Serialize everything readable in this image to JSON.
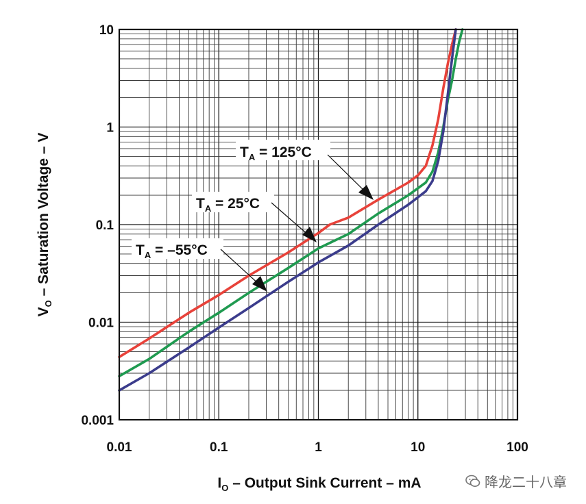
{
  "chart_data": {
    "type": "line",
    "x_scale": "log",
    "y_scale": "log",
    "xlim": [
      0.01,
      100
    ],
    "ylim": [
      0.001,
      10
    ],
    "x_ticks": [
      "0.01",
      "0.1",
      "1",
      "10",
      "100"
    ],
    "y_ticks": [
      "0.001",
      "0.01",
      "0.1",
      "1",
      "10"
    ],
    "xlabel": {
      "main": "I",
      "sub": "O",
      "rest": " – Output Sink Current – mA"
    },
    "ylabel": {
      "main": "V",
      "sub": "O",
      "rest": " – Saturation Voltage – V"
    },
    "grid": true,
    "series": [
      {
        "name": "TA = 125°C",
        "color": "#e8423a",
        "x": [
          0.01,
          0.02,
          0.05,
          0.1,
          0.2,
          0.5,
          1,
          1.3,
          2,
          4,
          8,
          10,
          12,
          14,
          16,
          18,
          20,
          22,
          24
        ],
        "y": [
          0.0044,
          0.0068,
          0.0125,
          0.019,
          0.03,
          0.052,
          0.082,
          0.1,
          0.118,
          0.18,
          0.27,
          0.32,
          0.4,
          0.65,
          1.2,
          2.5,
          4.5,
          7,
          10
        ]
      },
      {
        "name": "TA = 25°C",
        "color": "#1f9a50",
        "x": [
          0.01,
          0.02,
          0.05,
          0.1,
          0.2,
          0.5,
          1,
          2,
          4,
          8,
          12,
          14,
          16,
          18,
          20,
          22,
          24,
          26,
          28
        ],
        "y": [
          0.0028,
          0.0042,
          0.008,
          0.0125,
          0.02,
          0.036,
          0.057,
          0.08,
          0.13,
          0.2,
          0.27,
          0.35,
          0.55,
          1.0,
          1.9,
          3.0,
          5.0,
          7.5,
          10
        ]
      },
      {
        "name": "TA = −55°C",
        "color": "#3b3c8c",
        "x": [
          0.01,
          0.02,
          0.05,
          0.1,
          0.2,
          0.5,
          1,
          2,
          4,
          8,
          12,
          14,
          16,
          18,
          20,
          22,
          24
        ],
        "y": [
          0.002,
          0.003,
          0.0055,
          0.0088,
          0.014,
          0.026,
          0.041,
          0.061,
          0.1,
          0.16,
          0.22,
          0.28,
          0.45,
          0.9,
          2.2,
          5.0,
          10
        ]
      }
    ],
    "annotations": [
      {
        "main": "T",
        "sub": "A",
        "rest": " = 125°C",
        "series": 0,
        "point": [
          4.5,
          0.2
        ]
      },
      {
        "main": "T",
        "sub": "A",
        "rest": " = 25°C",
        "series": 1,
        "point": [
          0.9,
          0.085
        ]
      },
      {
        "main": "T",
        "sub": "A",
        "rest": " = –55°C",
        "series": 2,
        "point": [
          0.3,
          0.018
        ]
      }
    ]
  },
  "watermark": {
    "icon": "wechat-icon",
    "text": "降龙二十八章"
  }
}
